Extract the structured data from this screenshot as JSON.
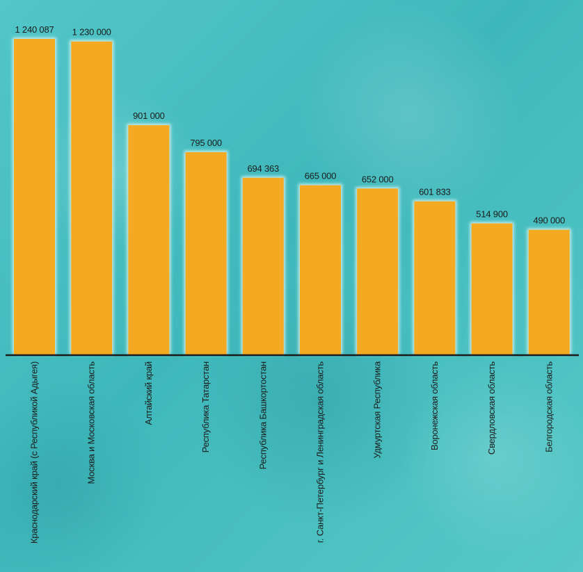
{
  "chart_data": {
    "type": "bar",
    "title": "",
    "xlabel": "",
    "ylabel": "",
    "categories": [
      "Краснодарский край (с Республикой Адыгея)",
      "Москва и Московская область",
      "Алтайский край",
      "Республика Татарстан",
      "Республика Башкортостан",
      "г. Санкт-Петербург и Ленинградская область",
      "Удмуртская Республика",
      "Воронежская область",
      "Свердловская область",
      "Белгородская область"
    ],
    "values": [
      1240087,
      1230000,
      901000,
      795000,
      694363,
      665000,
      652000,
      601833,
      514900,
      490000
    ],
    "value_labels": [
      "1 240 087",
      "1 230 000",
      "901 000",
      "795 000",
      "694 363",
      "665 000",
      "652 000",
      "601 833",
      "514 900",
      "490 000"
    ],
    "ylim": [
      0,
      1240087
    ],
    "grid": false,
    "legend": "none",
    "colors": {
      "bar": "#f4a922",
      "bar_glow": "#d9f4f2",
      "axis": "#1a1a1a",
      "text": "#1b1b1b"
    }
  }
}
